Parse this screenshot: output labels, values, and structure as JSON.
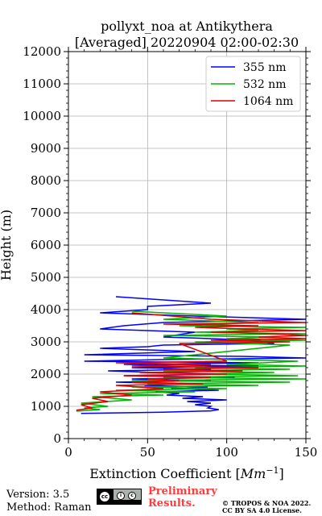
{
  "chart_data": {
    "type": "line",
    "title_line1": "pollyxt_noa at Antikythera",
    "title_line2": "[Averaged] 20220904 02:00-02:30",
    "xlabel": "Extinction Coefficient [Mm⁻¹]",
    "ylabel": "Height (m)",
    "xlim": [
      0,
      150
    ],
    "ylim": [
      0,
      12000
    ],
    "x_ticks": [
      0,
      50,
      100,
      150
    ],
    "y_ticks": [
      0,
      1000,
      2000,
      3000,
      4000,
      5000,
      6000,
      7000,
      8000,
      9000,
      10000,
      11000,
      12000
    ],
    "grid": true,
    "legend_position": "top-right",
    "series": [
      {
        "name": "355 nm",
        "color": "#0000ff",
        "x": [
          8,
          60,
          90,
          95,
          88,
          90,
          80,
          90,
          75,
          100,
          72,
          85,
          62,
          70,
          55,
          95,
          65,
          88,
          48,
          70,
          30,
          90,
          40,
          105,
          35,
          100,
          55,
          25,
          90,
          40,
          120,
          35,
          120,
          10,
          60,
          150,
          110,
          10,
          80,
          20,
          50,
          60,
          130,
          120,
          60,
          80,
          20,
          35,
          60,
          150,
          80,
          20,
          50,
          50,
          90,
          30
        ],
        "y": [
          780,
          820,
          860,
          900,
          950,
          1000,
          1050,
          1100,
          1150,
          1200,
          1250,
          1300,
          1350,
          1400,
          1450,
          1500,
          1550,
          1600,
          1650,
          1700,
          1750,
          1800,
          1850,
          1900,
          1950,
          2000,
          2050,
          2100,
          2150,
          2200,
          2250,
          2300,
          2350,
          2400,
          2450,
          2500,
          2550,
          2600,
          2700,
          2800,
          2850,
          2900,
          2950,
          3050,
          3150,
          3300,
          3400,
          3500,
          3600,
          3700,
          3800,
          3900,
          4000,
          4100,
          4200,
          4400
        ]
      },
      {
        "name": "532 nm",
        "color": "#00b400",
        "x": [
          5,
          20,
          10,
          25,
          8,
          40,
          15,
          60,
          20,
          80,
          30,
          100,
          40,
          120,
          50,
          140,
          40,
          150,
          60,
          145,
          80,
          130,
          60,
          140,
          80,
          150,
          100,
          145,
          60,
          140,
          80,
          150,
          100,
          130,
          60,
          150,
          80,
          120,
          100,
          150,
          70,
          120,
          60,
          100,
          40
        ],
        "y": [
          850,
          900,
          950,
          1000,
          1100,
          1200,
          1300,
          1350,
          1400,
          1450,
          1500,
          1550,
          1600,
          1650,
          1700,
          1750,
          1800,
          1850,
          1900,
          1950,
          2000,
          2050,
          2100,
          2150,
          2200,
          2250,
          2300,
          2400,
          2500,
          2900,
          3000,
          3050,
          3100,
          3150,
          3200,
          3250,
          3300,
          3350,
          3400,
          3450,
          3500,
          3600,
          3700,
          3800,
          3950
        ]
      },
      {
        "name": "1064 nm",
        "color": "#e00000",
        "x": [
          5,
          15,
          8,
          25,
          15,
          40,
          20,
          60,
          30,
          85,
          40,
          70,
          50,
          90,
          35,
          100,
          45,
          110,
          60,
          120,
          40,
          90,
          30,
          100,
          70,
          140,
          90,
          150,
          120,
          150,
          130,
          90,
          150,
          110,
          80,
          120,
          60,
          150,
          90,
          40
        ],
        "y": [
          880,
          950,
          1050,
          1150,
          1250,
          1350,
          1450,
          1550,
          1650,
          1700,
          1750,
          1800,
          1850,
          1900,
          1950,
          2000,
          2050,
          2100,
          2150,
          2200,
          2250,
          2300,
          2350,
          2400,
          2950,
          3000,
          3050,
          3100,
          3150,
          3200,
          3250,
          3300,
          3350,
          3400,
          3450,
          3500,
          3550,
          3600,
          3700,
          3900
        ]
      }
    ]
  },
  "footer": {
    "version": "Version: 3.5",
    "method": "Method: Raman",
    "cc_license_icon": "cc-by-sa-badge",
    "preliminary_line1": "Preliminary",
    "preliminary_line2": "Results.",
    "copyright_line1": "© TROPOS & NOA 2022.",
    "copyright_line2": "CC BY SA 4.0 License."
  }
}
